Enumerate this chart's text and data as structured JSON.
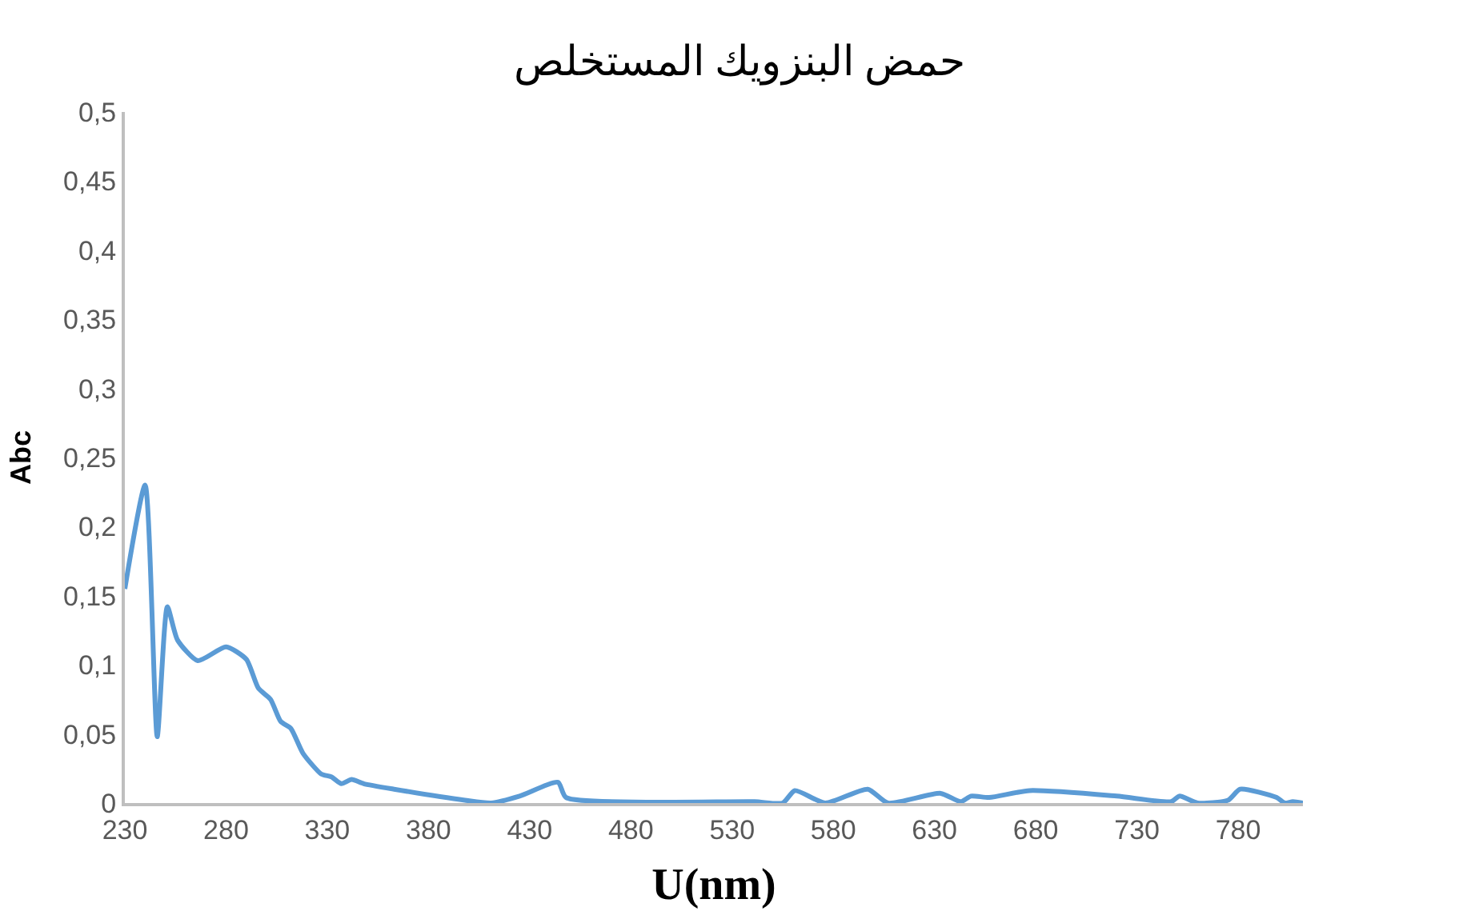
{
  "chart_data": {
    "type": "line",
    "title": "حمض البنزويك المستخلص",
    "xlabel": "U(nm)",
    "ylabel": "Abc",
    "x": [
      230,
      240,
      246,
      251,
      256,
      266,
      280,
      290,
      296,
      302,
      307,
      312,
      318,
      327,
      332,
      337,
      342,
      348,
      363,
      398,
      411,
      425,
      444,
      448,
      541,
      555,
      561,
      576,
      597,
      607,
      633,
      643,
      648,
      657,
      677,
      720,
      747,
      751,
      760,
      775,
      781,
      799,
      803,
      807,
      812
    ],
    "series": [
      {
        "color": "#5b9bd5",
        "values": [
          0.155,
          0.23,
          0.048,
          0.142,
          0.118,
          0.103,
          0.113,
          0.104,
          0.083,
          0.075,
          0.059,
          0.054,
          0.036,
          0.021,
          0.019,
          0.014,
          0.017,
          0.014,
          0.01,
          0.002,
          0,
          0.005,
          0.015,
          0.004,
          0.001,
          0,
          0.009,
          0,
          0.01,
          0,
          0.007,
          0.001,
          0.005,
          0.004,
          0.009,
          0.005,
          0.001,
          0.005,
          0,
          0.002,
          0.01,
          0.004,
          0,
          0.001,
          0
        ]
      }
    ],
    "xlim": [
      230,
      812
    ],
    "xticks": [
      230,
      280,
      330,
      380,
      430,
      480,
      530,
      580,
      630,
      680,
      730,
      780
    ],
    "ylim": [
      0,
      0.5
    ],
    "yticks": [
      {
        "value": 0,
        "label": "0"
      },
      {
        "value": 0.05,
        "label": "0,05"
      },
      {
        "value": 0.1,
        "label": "0,1"
      },
      {
        "value": 0.15,
        "label": "0,15"
      },
      {
        "value": 0.2,
        "label": "0,2"
      },
      {
        "value": 0.25,
        "label": "0,25"
      },
      {
        "value": 0.3,
        "label": "0,3"
      },
      {
        "value": 0.35,
        "label": "0,35"
      },
      {
        "value": 0.4,
        "label": "0,4"
      },
      {
        "value": 0.45,
        "label": "0,45"
      },
      {
        "value": 0.5,
        "label": "0,5"
      }
    ],
    "legend": false,
    "marker": "none",
    "line_style": "solid"
  }
}
